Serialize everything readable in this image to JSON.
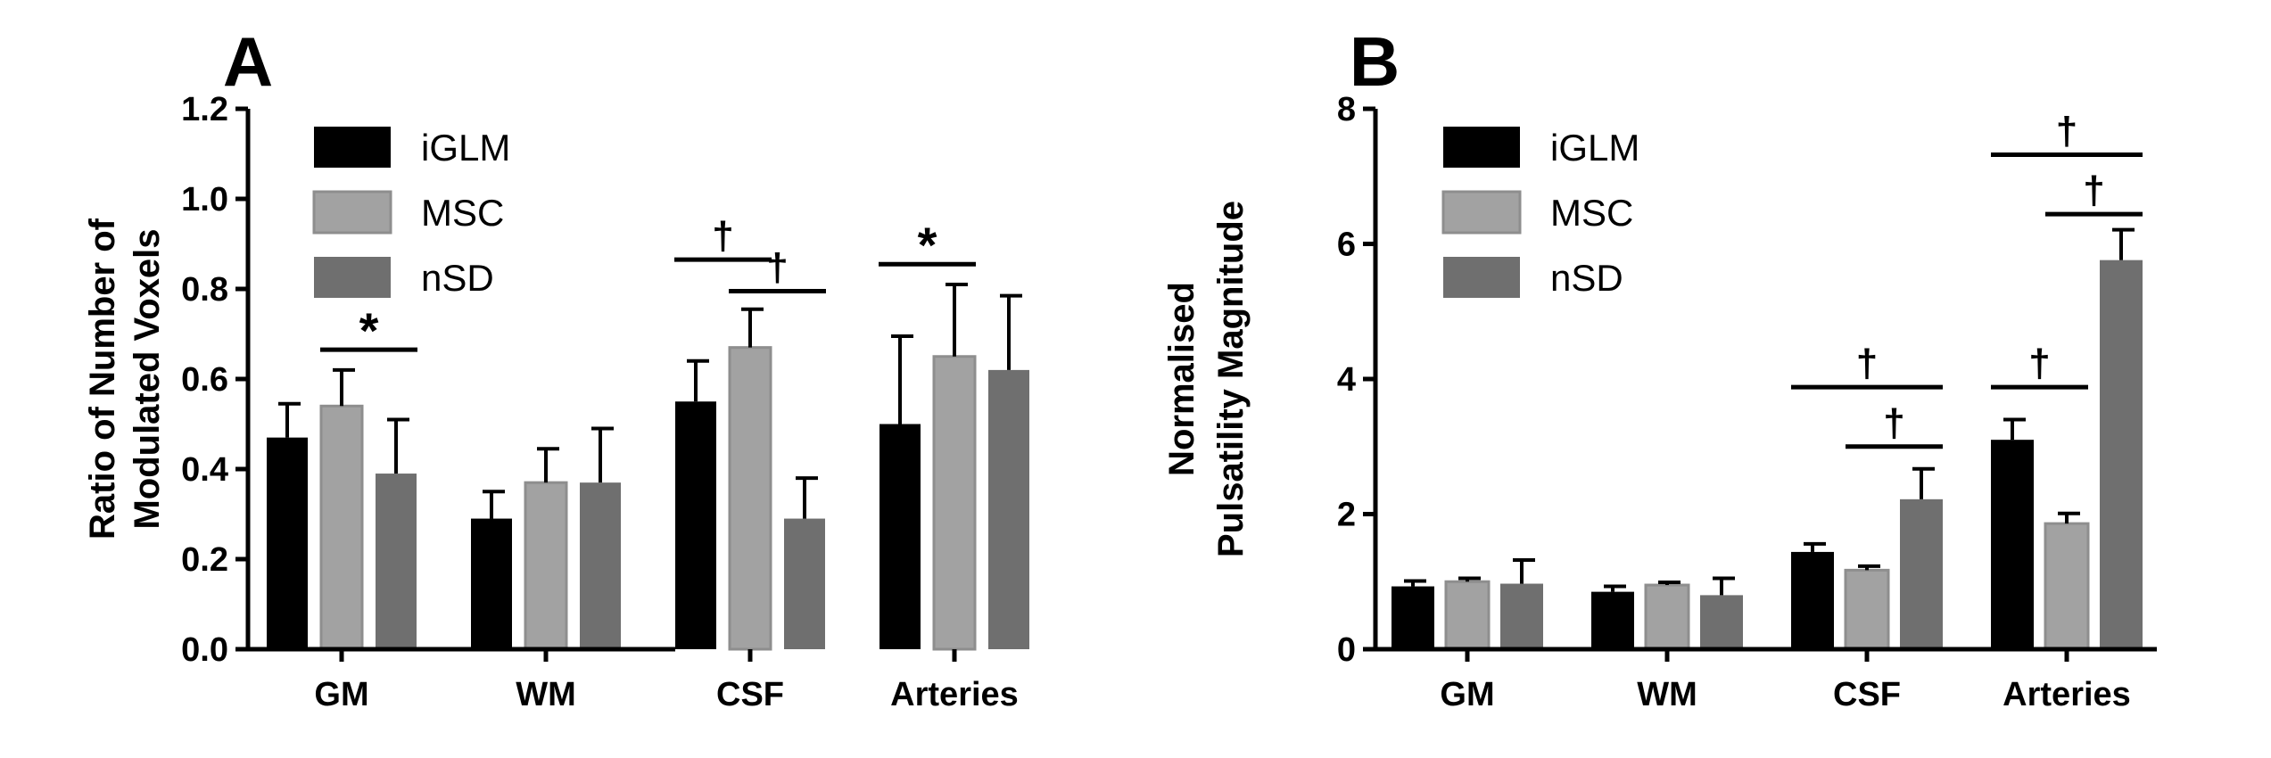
{
  "colors": {
    "iGLM": "#000000",
    "MSC": "#a2a2a2",
    "nSD": "#6f6f6f",
    "axis": "#000000"
  },
  "chart_data": [
    {
      "type": "bar",
      "panel_label": "A",
      "categories": [
        "GM",
        "WM",
        "CSF",
        "Arteries"
      ],
      "ylabel": "Ratio of Number of Modulated Voxels",
      "xlabel": "",
      "ylim": [
        0,
        1.2
      ],
      "yticks": [
        "0.0",
        "0.2",
        "0.4",
        "0.6",
        "0.8",
        "1.0",
        "1.2"
      ],
      "legend": {
        "placement": "top-left",
        "entries": [
          "iGLM",
          "MSC",
          "nSD"
        ]
      },
      "series": [
        {
          "name": "iGLM",
          "values": [
            0.47,
            0.29,
            0.55,
            0.5
          ],
          "errors": [
            0.075,
            0.06,
            0.09,
            0.195
          ]
        },
        {
          "name": "MSC",
          "values": [
            0.54,
            0.37,
            0.67,
            0.65
          ],
          "errors": [
            0.08,
            0.075,
            0.085,
            0.16
          ]
        },
        {
          "name": "nSD",
          "values": [
            0.39,
            0.37,
            0.29,
            0.62
          ],
          "errors": [
            0.12,
            0.12,
            0.09,
            0.165
          ]
        }
      ],
      "annotations": [
        {
          "symbol": "*",
          "category": 0,
          "from_series": 1,
          "to_series": 2,
          "y": 0.665
        },
        {
          "symbol": "†",
          "category": 2,
          "from_series": 0,
          "to_series": 1,
          "y": 0.865
        },
        {
          "symbol": "†",
          "category": 2,
          "from_series": 1,
          "to_series": 2,
          "y": 0.795
        },
        {
          "symbol": "*",
          "category": 3,
          "from_series": 0,
          "to_series": 1,
          "y": 0.855
        }
      ]
    },
    {
      "type": "bar",
      "panel_label": "B",
      "categories": [
        "GM",
        "WM",
        "CSF",
        "Arteries"
      ],
      "ylabel": "Normalised Pulsatility Magnitude",
      "xlabel": "",
      "ylim": [
        0,
        8
      ],
      "yticks": [
        "0",
        "2",
        "4",
        "6",
        "8"
      ],
      "legend": {
        "placement": "top-left",
        "entries": [
          "iGLM",
          "MSC",
          "nSD"
        ]
      },
      "series": [
        {
          "name": "iGLM",
          "values": [
            0.93,
            0.85,
            1.44,
            3.1
          ],
          "errors": [
            0.08,
            0.08,
            0.12,
            0.3
          ]
        },
        {
          "name": "MSC",
          "values": [
            1.0,
            0.95,
            1.17,
            1.86
          ],
          "errors": [
            0.05,
            0.04,
            0.06,
            0.15
          ]
        },
        {
          "name": "nSD",
          "values": [
            0.97,
            0.8,
            2.22,
            5.76
          ],
          "errors": [
            0.35,
            0.25,
            0.45,
            0.45
          ]
        }
      ],
      "annotations": [
        {
          "symbol": "†",
          "category": 2,
          "from_series": 0,
          "to_series": 2,
          "y": 3.88
        },
        {
          "symbol": "†",
          "category": 2,
          "from_series": 1,
          "to_series": 2,
          "y": 3.0
        },
        {
          "symbol": "†",
          "category": 3,
          "from_series": 0,
          "to_series": 1,
          "y": 3.88
        },
        {
          "symbol": "†",
          "category": 3,
          "from_series": 1,
          "to_series": 2,
          "y": 6.44
        },
        {
          "symbol": "†",
          "category": 3,
          "from_series": 0,
          "to_series": 2,
          "y": 7.32
        }
      ]
    }
  ]
}
